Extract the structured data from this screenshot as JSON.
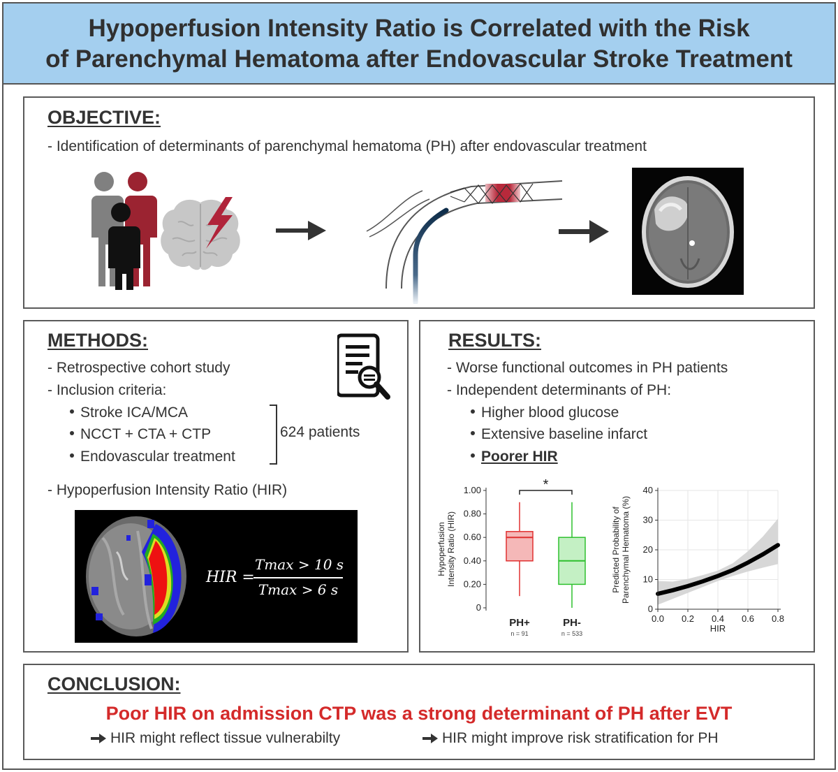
{
  "header": {
    "title_line1": "Hypoperfusion Intensity Ratio is Correlated with the Risk",
    "title_line2": "of Parenchymal Hematoma after Endovascular Stroke Treatment"
  },
  "objective": {
    "heading": "OBJECTIVE:",
    "text": "- Identification of determinants of parenchymal hematoma (PH) after endovascular treatment",
    "icons": [
      "patients-icon",
      "brain-lightning-icon",
      "arrow-right-icon",
      "stent-vessel-icon",
      "arrow-right-icon",
      "ct-scan-image"
    ]
  },
  "methods": {
    "heading": "METHODS:",
    "items": [
      "- Retrospective cohort study",
      "- Inclusion criteria:"
    ],
    "criteria": [
      "Stroke ICA/MCA",
      "NCCT + CTA + CTP",
      "Endovascular treatment"
    ],
    "patients": "624 patients",
    "hir_label": "- Hypoperfusion Intensity Ratio (HIR)",
    "formula": {
      "lhs": "HIR =",
      "numerator": "Tmax > 10 s",
      "denominator": "Tmax > 6 s"
    },
    "icons": [
      "document-search-icon",
      "perfusion-map-image"
    ]
  },
  "results": {
    "heading": "RESULTS:",
    "items": [
      "- Worse functional outcomes in PH patients",
      "- Independent determinants of PH:"
    ],
    "determinants": [
      "Higher blood glucose",
      "Extensive baseline infarct",
      "Poorer HIR"
    ]
  },
  "chart_data": [
    {
      "type": "box",
      "ylabel": "Hypoperfusion Intensity Ratio (HIR)",
      "ylim": [
        0,
        1.0
      ],
      "yticks": [
        "0",
        "0.20",
        "0.40",
        "0.60",
        "0.80",
        "1.00"
      ],
      "categories": [
        "PH+",
        "PH-"
      ],
      "n_labels": [
        "n = 91",
        "n = 533"
      ],
      "significance": "*",
      "colors": [
        "#e03030",
        "#2ec02e"
      ],
      "boxes": [
        {
          "whisker_low": 0.1,
          "q1": 0.4,
          "median": 0.6,
          "q3": 0.65,
          "whisker_high": 0.9
        },
        {
          "whisker_low": 0.0,
          "q1": 0.2,
          "median": 0.4,
          "q3": 0.6,
          "whisker_high": 0.9
        }
      ]
    },
    {
      "type": "line",
      "xlabel": "HIR",
      "ylabel": "Predicted Probability of Parenchymal Hematoma (%)",
      "xlim": [
        0,
        0.8
      ],
      "ylim": [
        0,
        40
      ],
      "xticks": [
        "0.0",
        "0.2",
        "0.4",
        "0.6",
        "0.8"
      ],
      "yticks": [
        "0",
        "10",
        "20",
        "30",
        "40"
      ],
      "grid": true,
      "x": [
        0.0,
        0.1,
        0.2,
        0.3,
        0.4,
        0.5,
        0.6,
        0.7,
        0.8
      ],
      "y": [
        5.2,
        6.4,
        7.8,
        9.4,
        11.2,
        13.2,
        15.7,
        18.5,
        21.6
      ],
      "ci_low": [
        1.5,
        3.5,
        5.5,
        7.5,
        9.5,
        11.2,
        12.7,
        14.0,
        15.2
      ],
      "ci_high": [
        9.5,
        9.3,
        10.2,
        11.5,
        13.0,
        15.5,
        19.5,
        24.5,
        30.5
      ]
    }
  ],
  "conclusion": {
    "heading": "CONCLUSION:",
    "main": "Poor HIR on admission CTP was a strong determinant of  PH after EVT",
    "points": [
      "HIR might reflect tissue vulnerabilty",
      "HIR might improve risk stratification for PH"
    ]
  }
}
